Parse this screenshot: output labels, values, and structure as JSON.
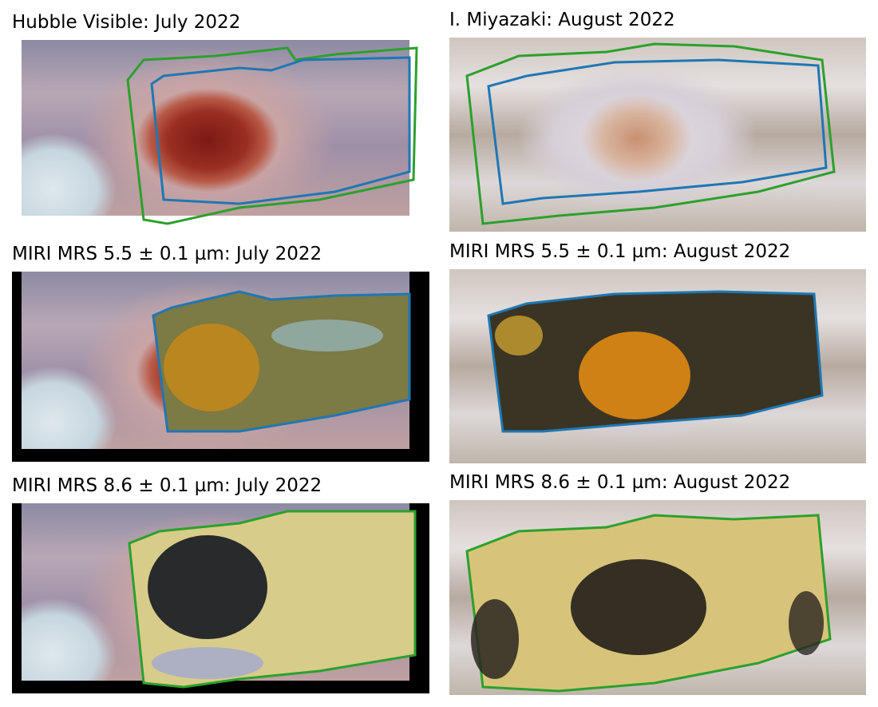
{
  "figure": {
    "panels": [
      {
        "title": "Hubble Visible: July 2022",
        "outlines": [
          "green",
          "blue"
        ]
      },
      {
        "title": "I. Miyazaki: August 2022",
        "outlines": [
          "green",
          "blue"
        ]
      },
      {
        "title": "MIRI MRS 5.5 ± 0.1 µm: July 2022",
        "outlines": [
          "blue"
        ]
      },
      {
        "title": "MIRI MRS 5.5 ± 0.1 µm: August 2022",
        "outlines": [
          "blue"
        ]
      },
      {
        "title": "MIRI MRS 8.6 ± 0.1 µm: July 2022",
        "outlines": [
          "green"
        ]
      },
      {
        "title": "MIRI MRS 8.6 ± 0.1 µm: August 2022",
        "outlines": [
          "green"
        ]
      }
    ],
    "colors": {
      "green_outline": "#2ca02c",
      "blue_outline": "#1f77b4"
    }
  }
}
